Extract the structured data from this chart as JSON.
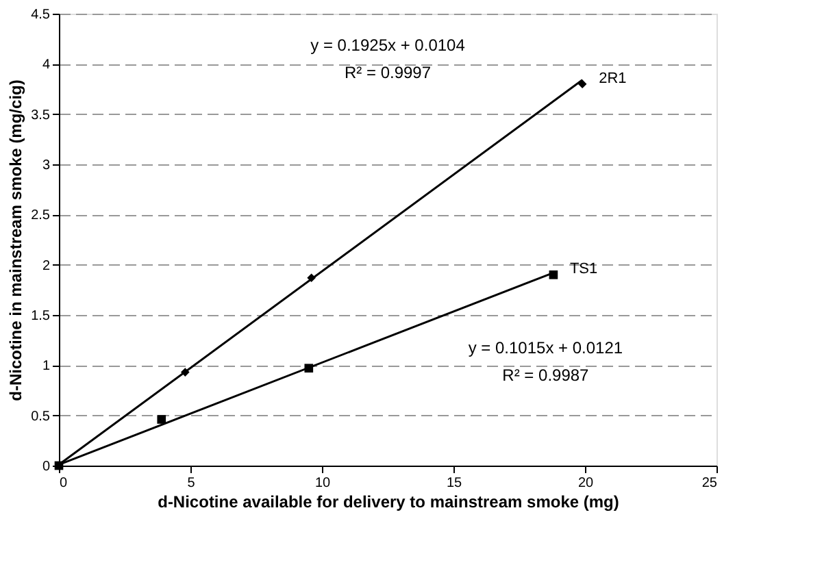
{
  "chart_data": {
    "type": "scatter",
    "xlabel": "d-Nicotine available for delivery to mainstream smoke (mg)",
    "ylabel": "d-Nicotine in mainstream smoke (mg/cig)",
    "xlim": [
      0,
      25
    ],
    "xticks": [
      0,
      5,
      10,
      15,
      20,
      25
    ],
    "ylim": [
      0,
      4.5
    ],
    "yticks": [
      0,
      0.5,
      1,
      1.5,
      2,
      2.5,
      3,
      3.5,
      4,
      4.5
    ],
    "grid": "y",
    "legend": false,
    "series": [
      {
        "name": "2R1",
        "type": "scatter",
        "marker": "diamond",
        "color": "#000000",
        "x": [
          4.8,
          9.6,
          19.9
        ],
        "values": [
          0.93,
          1.87,
          3.8
        ]
      },
      {
        "name": "TS1",
        "type": "scatter",
        "marker": "square",
        "color": "#000000",
        "x": [
          0,
          3.9,
          9.5,
          18.8
        ],
        "values": [
          0,
          0.46,
          0.97,
          1.9
        ]
      },
      {
        "type": "line",
        "line_style": "solid",
        "color": "#000000",
        "x": [
          0,
          19.9
        ],
        "values": [
          0.01,
          3.84
        ]
      },
      {
        "type": "line",
        "line_style": "solid",
        "color": "#000000",
        "x": [
          0,
          18.8
        ],
        "values": [
          0.01,
          1.92
        ]
      }
    ],
    "annotations": [
      "y = 0.1925x + 0.0104",
      "R² = 0.9997",
      "y = 0.1015x + 0.0121",
      "R² = 0.9987"
    ]
  }
}
